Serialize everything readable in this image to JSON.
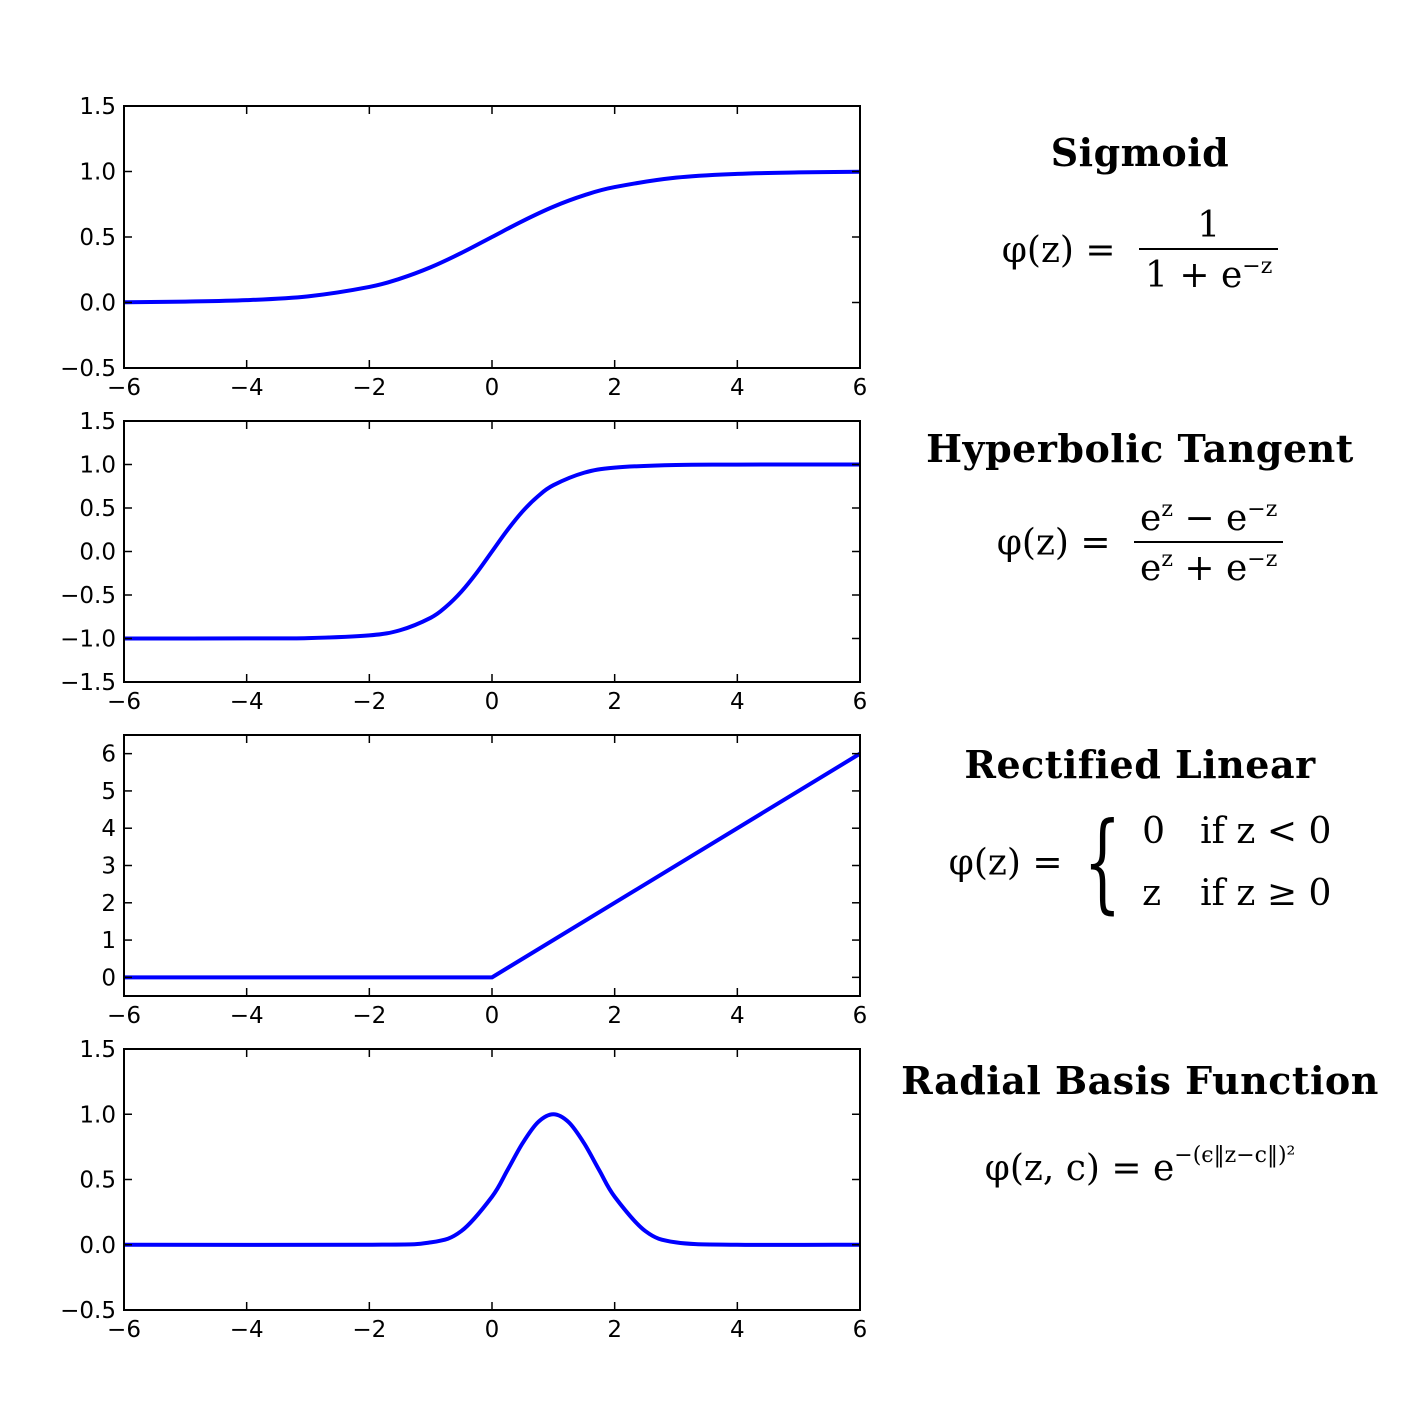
{
  "chart_data": [
    {
      "type": "line",
      "name": "sigmoid",
      "xlim": [
        -6,
        6
      ],
      "ylim": [
        -0.5,
        1.5
      ],
      "xticks": [
        "−6",
        "−4",
        "−2",
        "0",
        "2",
        "4",
        "6"
      ],
      "yticks": [
        "−0.5",
        "0.0",
        "0.5",
        "1.0",
        "1.5"
      ],
      "xtick_values": [
        -6,
        -4,
        -2,
        0,
        2,
        4,
        6
      ],
      "ytick_values": [
        -0.5,
        0.0,
        0.5,
        1.0,
        1.5
      ],
      "line_color": "#0000ff",
      "series": [
        {
          "x": [
            -6,
            -5,
            -4,
            -3,
            -2,
            -1.5,
            -1,
            -0.5,
            0,
            0.5,
            1,
            1.5,
            2,
            3,
            4,
            5,
            6
          ],
          "y": [
            0.002,
            0.007,
            0.018,
            0.047,
            0.119,
            0.182,
            0.269,
            0.378,
            0.5,
            0.622,
            0.731,
            0.818,
            0.881,
            0.953,
            0.982,
            0.993,
            0.998
          ]
        }
      ],
      "grid": false
    },
    {
      "type": "line",
      "name": "tanh",
      "xlim": [
        -6,
        6
      ],
      "ylim": [
        -1.5,
        1.5
      ],
      "xticks": [
        "−6",
        "−4",
        "−2",
        "0",
        "2",
        "4",
        "6"
      ],
      "yticks": [
        "−1.5",
        "−1.0",
        "−0.5",
        "0.0",
        "0.5",
        "1.0",
        "1.5"
      ],
      "xtick_values": [
        -6,
        -4,
        -2,
        0,
        2,
        4,
        6
      ],
      "ytick_values": [
        -1.5,
        -1.0,
        -0.5,
        0.0,
        0.5,
        1.0,
        1.5
      ],
      "line_color": "#0000ff",
      "series": [
        {
          "x": [
            -6,
            -4,
            -3,
            -2,
            -1.5,
            -1,
            -0.75,
            -0.5,
            -0.25,
            0,
            0.25,
            0.5,
            0.75,
            1,
            1.5,
            2,
            3,
            4,
            6
          ],
          "y": [
            -1.0,
            -0.999,
            -0.995,
            -0.964,
            -0.905,
            -0.762,
            -0.635,
            -0.462,
            -0.245,
            0.0,
            0.245,
            0.462,
            0.635,
            0.762,
            0.905,
            0.964,
            0.995,
            0.999,
            1.0
          ]
        }
      ],
      "grid": false
    },
    {
      "type": "line",
      "name": "relu",
      "xlim": [
        -6,
        6
      ],
      "ylim": [
        -0.5,
        6.5
      ],
      "xticks": [
        "−6",
        "−4",
        "−2",
        "0",
        "2",
        "4",
        "6"
      ],
      "yticks": [
        "0",
        "1",
        "2",
        "3",
        "4",
        "5",
        "6"
      ],
      "xtick_values": [
        -6,
        -4,
        -2,
        0,
        2,
        4,
        6
      ],
      "ytick_values": [
        0,
        1,
        2,
        3,
        4,
        5,
        6
      ],
      "line_color": "#0000ff",
      "series": [
        {
          "x": [
            -6,
            0,
            6
          ],
          "y": [
            0,
            0,
            6
          ]
        }
      ],
      "grid": false
    },
    {
      "type": "line",
      "name": "rbf",
      "xlim": [
        -6,
        6
      ],
      "ylim": [
        -0.5,
        1.5
      ],
      "xticks": [
        "−6",
        "−4",
        "−2",
        "0",
        "2",
        "4",
        "6"
      ],
      "yticks": [
        "−0.5",
        "0.0",
        "0.5",
        "1.0",
        "1.5"
      ],
      "xtick_values": [
        -6,
        -4,
        -2,
        0,
        2,
        4,
        6
      ],
      "ytick_values": [
        -0.5,
        0.0,
        0.5,
        1.0,
        1.5
      ],
      "line_color": "#0000ff",
      "series": [
        {
          "x": [
            -6,
            -2,
            -1,
            -0.5,
            0,
            0.25,
            0.5,
            0.75,
            1,
            1.25,
            1.5,
            1.75,
            2,
            2.5,
            3,
            4,
            6
          ],
          "y": [
            0.0,
            0.0,
            0.018,
            0.105,
            0.368,
            0.57,
            0.779,
            0.939,
            1.0,
            0.939,
            0.779,
            0.57,
            0.368,
            0.105,
            0.018,
            0.0,
            0.0
          ]
        }
      ],
      "grid": false
    }
  ],
  "panels": {
    "sigmoid": {
      "title": "Sigmoid",
      "lhs": "φ(z) =",
      "numerator": "1",
      "denominator": "1 + e",
      "den_exp": "−z"
    },
    "tanh": {
      "title": "Hyperbolic Tangent",
      "lhs": "φ(z) =",
      "num_a": "e",
      "num_a_exp": "z",
      "num_op": " − e",
      "num_b_exp": "−z",
      "den_a": "e",
      "den_a_exp": "z",
      "den_op": " + e",
      "den_b_exp": "−z"
    },
    "relu": {
      "title": "Rectified Linear",
      "lhs": "φ(z) =",
      "case1_val": "0",
      "case1_cond": "if z < 0",
      "case2_val": "z",
      "case2_cond": "if z ≥ 0"
    },
    "rbf": {
      "title": "Radial Basis Function",
      "lhs": "φ(z, c) = e",
      "exp": "−(ϵ‖z−c‖)²"
    }
  }
}
